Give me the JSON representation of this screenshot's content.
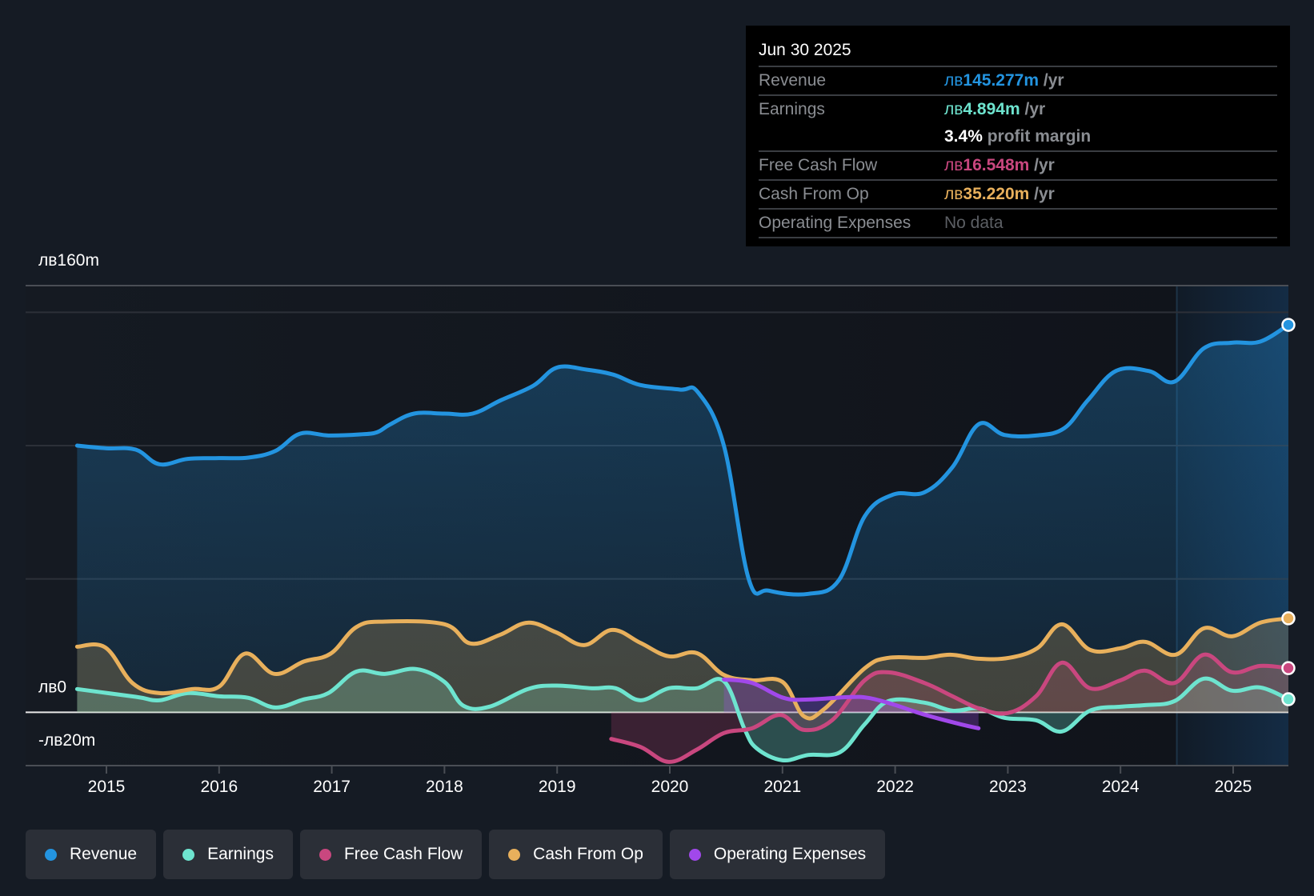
{
  "tooltip": {
    "date": "Jun 30 2025",
    "currency": "лв",
    "rows": [
      {
        "label": "Revenue",
        "value": "145.277m",
        "unit": "/yr",
        "color": "#2394e0"
      },
      {
        "label": "Earnings",
        "value": "4.894m",
        "unit": "/yr",
        "color": "#6ee4cf"
      },
      {
        "label": "",
        "margin_pct": "3.4%",
        "margin_text": "profit margin"
      },
      {
        "label": "Free Cash Flow",
        "value": "16.548m",
        "unit": "/yr",
        "color": "#c9477f"
      },
      {
        "label": "Cash From Op",
        "value": "35.220m",
        "unit": "/yr",
        "color": "#e8b05c"
      },
      {
        "label": "Operating Expenses",
        "nodata": "No data"
      }
    ]
  },
  "legend": [
    {
      "label": "Revenue",
      "color": "#2394e0"
    },
    {
      "label": "Earnings",
      "color": "#6ee4cf"
    },
    {
      "label": "Free Cash Flow",
      "color": "#c9477f"
    },
    {
      "label": "Cash From Op",
      "color": "#e8b05c"
    },
    {
      "label": "Operating Expenses",
      "color": "#a148ea"
    }
  ],
  "chart_data": {
    "type": "area",
    "title": "",
    "xlabel": "",
    "ylabel": "",
    "currency": "лв",
    "ylim": [
      -20,
      160
    ],
    "y_tick_labels": [
      {
        "value": 160,
        "label": "лв160m"
      },
      {
        "value": 0,
        "label": "лв0"
      },
      {
        "value": -20,
        "label": "-лв20m"
      }
    ],
    "y_gridlines": [
      150,
      100,
      50
    ],
    "xlim": [
      2014.4,
      2025.49
    ],
    "x_ticks": [
      2015,
      2016,
      2017,
      2018,
      2019,
      2020,
      2021,
      2022,
      2023,
      2024,
      2025
    ],
    "x_tick_labels": [
      "2015",
      "2016",
      "2017",
      "2018",
      "2019",
      "2020",
      "2021",
      "2022",
      "2023",
      "2024",
      "2025"
    ],
    "highlight_from": 2024.5,
    "grid": true,
    "legend_position": "bottom-left",
    "series": [
      {
        "name": "Revenue",
        "color": "#2394e0",
        "points": [
          [
            2014.74,
            100
          ],
          [
            2015.0,
            99
          ],
          [
            2015.26,
            98.5
          ],
          [
            2015.47,
            93
          ],
          [
            2015.72,
            95
          ],
          [
            2016.0,
            95.3
          ],
          [
            2016.26,
            95.5
          ],
          [
            2016.5,
            98
          ],
          [
            2016.72,
            104.5
          ],
          [
            2016.97,
            103.8
          ],
          [
            2017.25,
            104.2
          ],
          [
            2017.4,
            105
          ],
          [
            2017.52,
            108
          ],
          [
            2017.73,
            112
          ],
          [
            2018.0,
            112
          ],
          [
            2018.25,
            112
          ],
          [
            2018.5,
            117
          ],
          [
            2018.79,
            122.5
          ],
          [
            2019.0,
            129.3
          ],
          [
            2019.26,
            128.5
          ],
          [
            2019.5,
            126.6
          ],
          [
            2019.74,
            122.7
          ],
          [
            2020.09,
            121
          ],
          [
            2020.25,
            120
          ],
          [
            2020.48,
            100
          ],
          [
            2020.7,
            50
          ],
          [
            2020.88,
            45.6
          ],
          [
            2021.23,
            44.4
          ],
          [
            2021.5,
            49.5
          ],
          [
            2021.73,
            73.5
          ],
          [
            2021.98,
            81.6
          ],
          [
            2022.26,
            82.5
          ],
          [
            2022.51,
            92
          ],
          [
            2022.74,
            108
          ],
          [
            2022.97,
            104
          ],
          [
            2023.25,
            103.8
          ],
          [
            2023.5,
            106.5
          ],
          [
            2023.71,
            117
          ],
          [
            2023.96,
            128
          ],
          [
            2024.25,
            128
          ],
          [
            2024.48,
            124
          ],
          [
            2024.74,
            136.5
          ],
          [
            2024.99,
            138.6
          ],
          [
            2025.24,
            139
          ],
          [
            2025.49,
            145.277
          ]
        ]
      },
      {
        "name": "Earnings",
        "color": "#6ee4cf",
        "points": [
          [
            2014.74,
            8.7
          ],
          [
            2015.26,
            5.8
          ],
          [
            2015.47,
            4.5
          ],
          [
            2015.72,
            7.2
          ],
          [
            2016.0,
            6
          ],
          [
            2016.26,
            5.4
          ],
          [
            2016.5,
            1.8
          ],
          [
            2016.75,
            4.8
          ],
          [
            2016.97,
            7.2
          ],
          [
            2017.22,
            15.3
          ],
          [
            2017.47,
            14.4
          ],
          [
            2017.75,
            16.2
          ],
          [
            2018.0,
            11.4
          ],
          [
            2018.17,
            2.4
          ],
          [
            2018.4,
            2.1
          ],
          [
            2018.74,
            8.7
          ],
          [
            2018.99,
            10
          ],
          [
            2019.31,
            9
          ],
          [
            2019.52,
            9
          ],
          [
            2019.74,
            4.5
          ],
          [
            2019.99,
            9
          ],
          [
            2020.24,
            9
          ],
          [
            2020.48,
            11.7
          ],
          [
            2020.66,
            -6
          ],
          [
            2020.77,
            -13.5
          ],
          [
            2021.0,
            -18
          ],
          [
            2021.23,
            -16
          ],
          [
            2021.51,
            -15
          ],
          [
            2021.73,
            -4.5
          ],
          [
            2021.94,
            4.2
          ],
          [
            2022.26,
            3.6
          ],
          [
            2022.51,
            0.6
          ],
          [
            2022.74,
            1.5
          ],
          [
            2022.97,
            -2.1
          ],
          [
            2023.25,
            -3
          ],
          [
            2023.48,
            -7.2
          ],
          [
            2023.73,
            0.6
          ],
          [
            2024.0,
            2.1
          ],
          [
            2024.22,
            2.7
          ],
          [
            2024.48,
            4.2
          ],
          [
            2024.74,
            12.6
          ],
          [
            2024.99,
            8.1
          ],
          [
            2025.24,
            9.3
          ],
          [
            2025.49,
            4.894
          ]
        ]
      },
      {
        "name": "Free Cash Flow",
        "color": "#c9477f",
        "points": [
          [
            2019.48,
            -10
          ],
          [
            2019.74,
            -13
          ],
          [
            2019.99,
            -18.6
          ],
          [
            2020.24,
            -14
          ],
          [
            2020.48,
            -7.8
          ],
          [
            2020.73,
            -6
          ],
          [
            2020.98,
            -1
          ],
          [
            2021.19,
            -6.6
          ],
          [
            2021.44,
            -3
          ],
          [
            2021.73,
            12
          ],
          [
            2021.94,
            15
          ],
          [
            2022.26,
            11
          ],
          [
            2022.51,
            6
          ],
          [
            2022.74,
            1.5
          ],
          [
            2023.0,
            -0.3
          ],
          [
            2023.25,
            6
          ],
          [
            2023.48,
            18.6
          ],
          [
            2023.73,
            9
          ],
          [
            2024.0,
            12
          ],
          [
            2024.22,
            15.6
          ],
          [
            2024.48,
            11
          ],
          [
            2024.74,
            21.6
          ],
          [
            2024.99,
            15
          ],
          [
            2025.24,
            17.4
          ],
          [
            2025.49,
            16.548
          ]
        ]
      },
      {
        "name": "Cash From Op",
        "color": "#e8b05c",
        "points": [
          [
            2014.74,
            24.6
          ],
          [
            2014.99,
            24.3
          ],
          [
            2015.23,
            11
          ],
          [
            2015.47,
            7.2
          ],
          [
            2015.76,
            8.7
          ],
          [
            2016.0,
            9.6
          ],
          [
            2016.23,
            22
          ],
          [
            2016.49,
            14.4
          ],
          [
            2016.75,
            19
          ],
          [
            2016.99,
            22
          ],
          [
            2017.22,
            32
          ],
          [
            2017.47,
            34
          ],
          [
            2018.0,
            33
          ],
          [
            2018.23,
            25.8
          ],
          [
            2018.49,
            29
          ],
          [
            2018.74,
            33.6
          ],
          [
            2018.99,
            30
          ],
          [
            2019.24,
            25.2
          ],
          [
            2019.49,
            30.9
          ],
          [
            2019.74,
            26
          ],
          [
            2019.99,
            21
          ],
          [
            2020.24,
            22.2
          ],
          [
            2020.48,
            14
          ],
          [
            2020.73,
            12
          ],
          [
            2021.0,
            11.4
          ],
          [
            2021.19,
            -1.5
          ],
          [
            2021.37,
            1.2
          ],
          [
            2021.73,
            16.5
          ],
          [
            2021.94,
            20.4
          ],
          [
            2022.26,
            20.4
          ],
          [
            2022.49,
            21.6
          ],
          [
            2022.74,
            20.1
          ],
          [
            2023.01,
            20.4
          ],
          [
            2023.26,
            24
          ],
          [
            2023.48,
            33
          ],
          [
            2023.73,
            23.4
          ],
          [
            2024.0,
            24
          ],
          [
            2024.22,
            26.4
          ],
          [
            2024.49,
            21.6
          ],
          [
            2024.74,
            31.5
          ],
          [
            2024.99,
            28.5
          ],
          [
            2025.24,
            33.6
          ],
          [
            2025.49,
            35.22
          ]
        ]
      },
      {
        "name": "Operating Expenses",
        "color": "#a148ea",
        "points": [
          [
            2020.48,
            12.3
          ],
          [
            2020.73,
            11
          ],
          [
            2021.01,
            5.4
          ],
          [
            2021.23,
            4.8
          ],
          [
            2021.58,
            5.7
          ],
          [
            2021.76,
            5.4
          ],
          [
            2021.98,
            3
          ],
          [
            2022.26,
            -0.9
          ],
          [
            2022.58,
            -4.5
          ],
          [
            2022.74,
            -6
          ]
        ]
      }
    ]
  }
}
